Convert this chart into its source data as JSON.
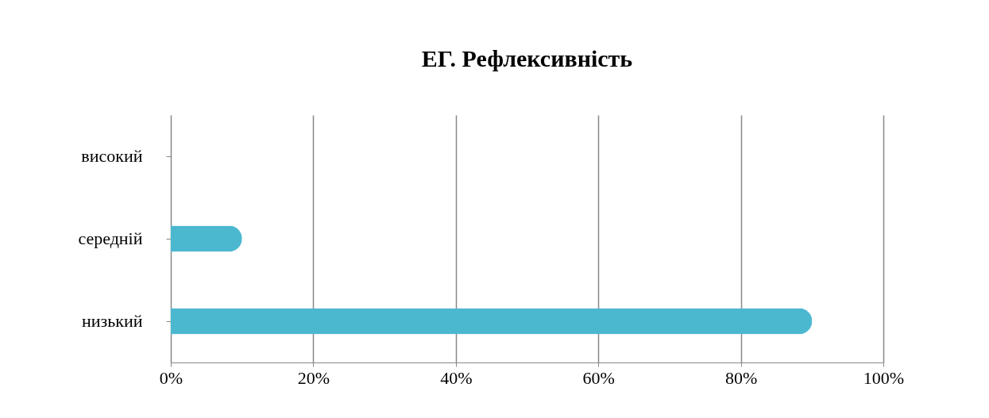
{
  "chart_data": {
    "type": "bar",
    "orientation": "horizontal",
    "title": "ЕГ. Рефлексивність",
    "categories": [
      "високий",
      "середній",
      "низький"
    ],
    "values": [
      0,
      10,
      90
    ],
    "color": "#4bb8d0",
    "xlim": [
      0,
      100
    ],
    "xticks": [
      {
        "value": 0,
        "label": "0%"
      },
      {
        "value": 20,
        "label": "20%"
      },
      {
        "value": 40,
        "label": "40%"
      },
      {
        "value": 60,
        "label": "60%"
      },
      {
        "value": 80,
        "label": "80%"
      },
      {
        "value": 100,
        "label": "100%"
      }
    ],
    "grid": "x"
  }
}
